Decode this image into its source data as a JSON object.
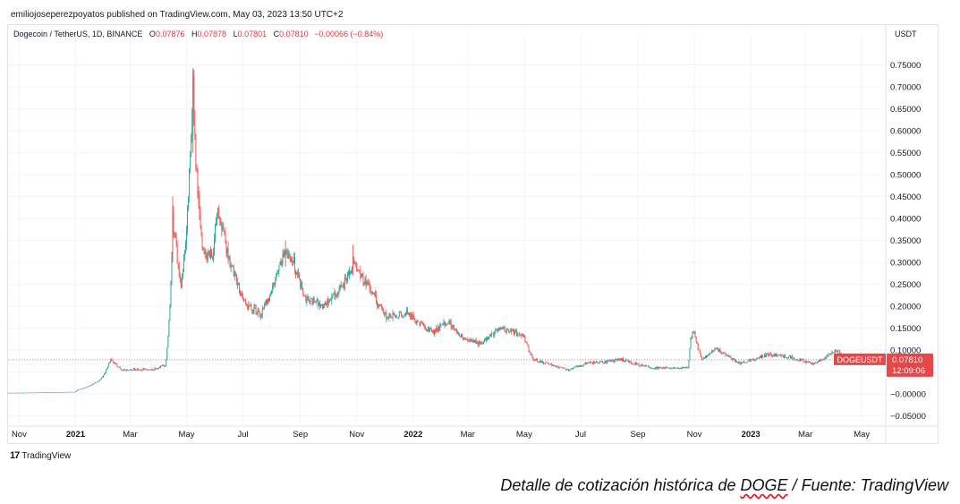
{
  "publisher_line": "emiliojoseperezpoyatos published on TradingView.com, May 03, 2023 13:50 UTC+2",
  "legend": {
    "symbol": "Dogecoin / TetherUS, 1D, BINANCE",
    "open_label": "O",
    "open": "0.07876",
    "high_label": "H",
    "high": "0.07878",
    "low_label": "L",
    "low": "0.07801",
    "close_label": "C",
    "close": "0.07810",
    "change": "−0.00066 (−0.84%)"
  },
  "currency": "USDT",
  "price_tag": {
    "symbol": "DOGEUSDT",
    "price": "0.07810",
    "countdown": "12:09:06"
  },
  "brand": "TradingView",
  "caption": {
    "prefix": "Detalle de cotización histórica de ",
    "ticker": "DOGE",
    "suffix": " / Fuente: TradingView"
  },
  "colors": {
    "up": "#26a69a",
    "down": "#ef5350",
    "tag": "#e8474a"
  },
  "chart_data": {
    "type": "candlestick",
    "y_tick_labels": [
      "0.75000",
      "0.70000",
      "0.65000",
      "0.60000",
      "0.55000",
      "0.50000",
      "0.45000",
      "0.40000",
      "0.35000",
      "0.30000",
      "0.25000",
      "0.20000",
      "0.15000",
      "0.10000",
      "0.05000",
      "−0.00000",
      "−0.05000"
    ],
    "y_tick_values": [
      0.75,
      0.7,
      0.65,
      0.6,
      0.55,
      0.5,
      0.45,
      0.4,
      0.35,
      0.3,
      0.25,
      0.2,
      0.15,
      0.1,
      0.05,
      0.0,
      -0.05
    ],
    "ylim": [
      -0.065,
      0.8
    ],
    "x_tick_labels": [
      "Nov",
      "2021",
      "Mar",
      "May",
      "Jul",
      "Sep",
      "Nov",
      "2022",
      "Mar",
      "May",
      "Jul",
      "Sep",
      "Nov",
      "2023",
      "Mar",
      "May"
    ],
    "x_tick_bold": [
      false,
      true,
      false,
      false,
      false,
      false,
      false,
      true,
      false,
      false,
      false,
      false,
      false,
      true,
      false,
      false
    ],
    "x_tick_dates": [
      "2020-11-01",
      "2021-01-01",
      "2021-03-01",
      "2021-05-01",
      "2021-07-01",
      "2021-09-01",
      "2021-11-01",
      "2022-01-01",
      "2022-03-01",
      "2022-05-01",
      "2022-07-01",
      "2022-09-01",
      "2022-11-01",
      "2023-01-01",
      "2023-03-01",
      "2023-05-01"
    ],
    "xlim": [
      "2020-10-20",
      "2023-05-25"
    ],
    "close_anchors": [
      [
        "2020-10-20",
        0.0026
      ],
      [
        "2020-12-31",
        0.0047
      ],
      [
        "2021-01-04",
        0.01
      ],
      [
        "2021-01-28",
        0.034
      ],
      [
        "2021-02-08",
        0.08
      ],
      [
        "2021-02-20",
        0.055
      ],
      [
        "2021-03-25",
        0.056
      ],
      [
        "2021-04-08",
        0.065
      ],
      [
        "2021-04-16",
        0.4
      ],
      [
        "2021-04-25",
        0.25
      ],
      [
        "2021-05-01",
        0.38
      ],
      [
        "2021-05-08",
        0.7
      ],
      [
        "2021-05-12",
        0.5
      ],
      [
        "2021-05-19",
        0.32
      ],
      [
        "2021-05-30",
        0.32
      ],
      [
        "2021-06-03",
        0.43
      ],
      [
        "2021-06-20",
        0.28
      ],
      [
        "2021-07-05",
        0.2
      ],
      [
        "2021-07-20",
        0.18
      ],
      [
        "2021-08-15",
        0.33
      ],
      [
        "2021-08-25",
        0.3
      ],
      [
        "2021-09-07",
        0.22
      ],
      [
        "2021-09-25",
        0.2
      ],
      [
        "2021-10-15",
        0.24
      ],
      [
        "2021-10-28",
        0.3
      ],
      [
        "2021-11-15",
        0.24
      ],
      [
        "2021-12-04",
        0.175
      ],
      [
        "2021-12-25",
        0.185
      ],
      [
        "2022-01-22",
        0.14
      ],
      [
        "2022-02-08",
        0.165
      ],
      [
        "2022-02-25",
        0.125
      ],
      [
        "2022-03-15",
        0.115
      ],
      [
        "2022-04-04",
        0.15
      ],
      [
        "2022-04-30",
        0.135
      ],
      [
        "2022-05-11",
        0.08
      ],
      [
        "2022-06-18",
        0.055
      ],
      [
        "2022-07-08",
        0.07
      ],
      [
        "2022-08-15",
        0.078
      ],
      [
        "2022-09-15",
        0.06
      ],
      [
        "2022-10-25",
        0.06
      ],
      [
        "2022-10-28",
        0.13
      ],
      [
        "2022-11-01",
        0.14
      ],
      [
        "2022-11-09",
        0.08
      ],
      [
        "2022-11-24",
        0.105
      ],
      [
        "2022-12-20",
        0.07
      ],
      [
        "2023-01-20",
        0.09
      ],
      [
        "2023-02-10",
        0.085
      ],
      [
        "2023-03-10",
        0.07
      ],
      [
        "2023-04-03",
        0.1
      ],
      [
        "2023-04-20",
        0.08
      ],
      [
        "2023-05-03",
        0.0781
      ]
    ]
  }
}
